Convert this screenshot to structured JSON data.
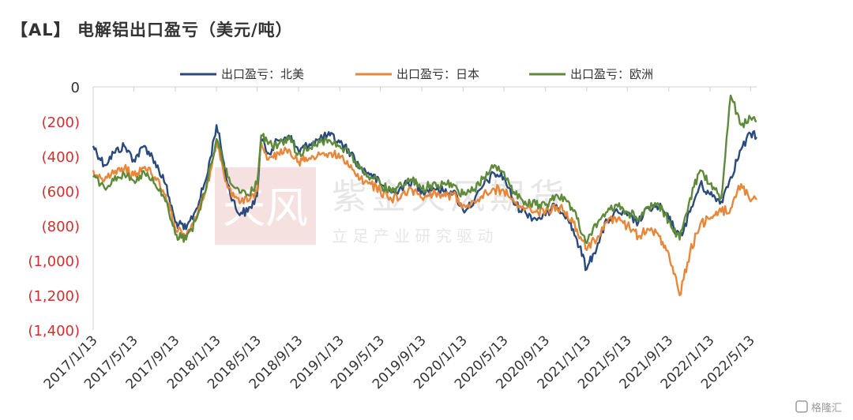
{
  "title": "【AL】 电解铝出口盈亏（美元/吨）",
  "watermark": {
    "logo": "天风",
    "main": "紫金天风期货",
    "sub": "立 足 产 业   研 究 驱 动"
  },
  "source_badge": "格隆汇",
  "chart_data": {
    "type": "line",
    "title": "【AL】 电解铝出口盈亏（美元/吨）",
    "xlabel": "",
    "ylabel": "",
    "ylim": [
      -1400,
      0
    ],
    "y_ticks": [
      0,
      -200,
      -400,
      -600,
      -800,
      -1000,
      -1200,
      -1400
    ],
    "y_tick_labels": [
      "0",
      "(200)",
      "(400)",
      "(600)",
      "(800)",
      "(1,000)",
      "(1,200)",
      "(1,400)"
    ],
    "x_tick_labels": [
      "2017/1/13",
      "2017/5/13",
      "2017/9/13",
      "2018/1/13",
      "2018/5/13",
      "2018/9/13",
      "2019/1/13",
      "2019/5/13",
      "2019/9/13",
      "2020/1/13",
      "2020/5/13",
      "2020/9/13",
      "2021/1/13",
      "2021/5/13",
      "2021/9/13",
      "2022/1/13",
      "2022/5/13"
    ],
    "x_range": [
      "2017/1/13",
      "2022/5/31"
    ],
    "grid": false,
    "legend_position": "top-center",
    "series": [
      {
        "name": "出口盈亏：北美",
        "color": "#2A4A7C",
        "points": [
          [
            "2017/1/13",
            -340
          ],
          [
            "2017/2/15",
            -450
          ],
          [
            "2017/3/15",
            -380
          ],
          [
            "2017/4/15",
            -340
          ],
          [
            "2017/5/13",
            -420
          ],
          [
            "2017/6/15",
            -340
          ],
          [
            "2017/7/15",
            -430
          ],
          [
            "2017/8/15",
            -560
          ],
          [
            "2017/9/13",
            -780
          ],
          [
            "2017/10/15",
            -820
          ],
          [
            "2017/11/15",
            -700
          ],
          [
            "2017/12/15",
            -520
          ],
          [
            "2018/1/13",
            -220
          ],
          [
            "2018/1/25",
            -330
          ],
          [
            "2018/2/15",
            -560
          ],
          [
            "2018/3/15",
            -720
          ],
          [
            "2018/4/15",
            -720
          ],
          [
            "2018/5/13",
            -630
          ],
          [
            "2018/5/25",
            -300
          ],
          [
            "2018/6/15",
            -380
          ],
          [
            "2018/7/15",
            -310
          ],
          [
            "2018/8/15",
            -280
          ],
          [
            "2018/9/13",
            -370
          ],
          [
            "2018/10/15",
            -330
          ],
          [
            "2018/11/15",
            -300
          ],
          [
            "2018/12/15",
            -280
          ],
          [
            "2019/1/13",
            -320
          ],
          [
            "2019/2/15",
            -380
          ],
          [
            "2019/3/15",
            -470
          ],
          [
            "2019/4/15",
            -500
          ],
          [
            "2019/5/13",
            -560
          ],
          [
            "2019/6/15",
            -610
          ],
          [
            "2019/7/15",
            -580
          ],
          [
            "2019/8/15",
            -540
          ],
          [
            "2019/9/13",
            -600
          ],
          [
            "2019/10/15",
            -580
          ],
          [
            "2019/11/15",
            -600
          ],
          [
            "2019/12/15",
            -600
          ],
          [
            "2020/1/13",
            -710
          ],
          [
            "2020/2/15",
            -660
          ],
          [
            "2020/3/15",
            -560
          ],
          [
            "2020/4/15",
            -500
          ],
          [
            "2020/5/13",
            -520
          ],
          [
            "2020/6/15",
            -680
          ],
          [
            "2020/7/15",
            -720
          ],
          [
            "2020/8/15",
            -760
          ],
          [
            "2020/9/13",
            -740
          ],
          [
            "2020/10/15",
            -680
          ],
          [
            "2020/11/15",
            -740
          ],
          [
            "2020/12/15",
            -880
          ],
          [
            "2021/1/13",
            -1050
          ],
          [
            "2021/2/15",
            -900
          ],
          [
            "2021/3/15",
            -770
          ],
          [
            "2021/4/15",
            -720
          ],
          [
            "2021/5/13",
            -740
          ],
          [
            "2021/6/15",
            -780
          ],
          [
            "2021/7/15",
            -700
          ],
          [
            "2021/8/15",
            -690
          ],
          [
            "2021/9/13",
            -760
          ],
          [
            "2021/10/15",
            -870
          ],
          [
            "2021/11/15",
            -720
          ],
          [
            "2021/12/15",
            -560
          ],
          [
            "2022/1/13",
            -620
          ],
          [
            "2022/2/15",
            -660
          ],
          [
            "2022/3/15",
            -520
          ],
          [
            "2022/4/15",
            -360
          ],
          [
            "2022/5/13",
            -270
          ],
          [
            "2022/5/31",
            -290
          ]
        ]
      },
      {
        "name": "出口盈亏：日本",
        "color": "#E8873A",
        "points": [
          [
            "2017/1/13",
            -480
          ],
          [
            "2017/2/15",
            -540
          ],
          [
            "2017/3/15",
            -500
          ],
          [
            "2017/4/15",
            -470
          ],
          [
            "2017/5/13",
            -510
          ],
          [
            "2017/6/15",
            -460
          ],
          [
            "2017/7/15",
            -520
          ],
          [
            "2017/8/15",
            -620
          ],
          [
            "2017/9/13",
            -820
          ],
          [
            "2017/10/15",
            -860
          ],
          [
            "2017/11/15",
            -750
          ],
          [
            "2017/12/15",
            -580
          ],
          [
            "2018/1/13",
            -320
          ],
          [
            "2018/1/25",
            -420
          ],
          [
            "2018/2/15",
            -580
          ],
          [
            "2018/3/15",
            -640
          ],
          [
            "2018/4/15",
            -660
          ],
          [
            "2018/5/13",
            -600
          ],
          [
            "2018/5/25",
            -320
          ],
          [
            "2018/6/15",
            -420
          ],
          [
            "2018/7/15",
            -380
          ],
          [
            "2018/8/15",
            -360
          ],
          [
            "2018/9/13",
            -430
          ],
          [
            "2018/10/15",
            -410
          ],
          [
            "2018/11/15",
            -390
          ],
          [
            "2018/12/15",
            -380
          ],
          [
            "2019/1/13",
            -410
          ],
          [
            "2019/2/15",
            -450
          ],
          [
            "2019/3/15",
            -530
          ],
          [
            "2019/4/15",
            -560
          ],
          [
            "2019/5/13",
            -600
          ],
          [
            "2019/6/15",
            -650
          ],
          [
            "2019/7/15",
            -620
          ],
          [
            "2019/8/15",
            -590
          ],
          [
            "2019/9/13",
            -640
          ],
          [
            "2019/10/15",
            -620
          ],
          [
            "2019/11/15",
            -630
          ],
          [
            "2019/12/15",
            -620
          ],
          [
            "2020/1/13",
            -680
          ],
          [
            "2020/2/15",
            -660
          ],
          [
            "2020/3/15",
            -610
          ],
          [
            "2020/4/15",
            -590
          ],
          [
            "2020/5/13",
            -600
          ],
          [
            "2020/6/15",
            -670
          ],
          [
            "2020/7/15",
            -700
          ],
          [
            "2020/8/15",
            -720
          ],
          [
            "2020/9/13",
            -720
          ],
          [
            "2020/10/15",
            -690
          ],
          [
            "2020/11/15",
            -720
          ],
          [
            "2020/12/15",
            -820
          ],
          [
            "2021/1/13",
            -940
          ],
          [
            "2021/2/15",
            -860
          ],
          [
            "2021/3/15",
            -780
          ],
          [
            "2021/4/15",
            -760
          ],
          [
            "2021/5/13",
            -800
          ],
          [
            "2021/6/15",
            -860
          ],
          [
            "2021/7/15",
            -820
          ],
          [
            "2021/8/15",
            -860
          ],
          [
            "2021/9/13",
            -960
          ],
          [
            "2021/10/15",
            -1200
          ],
          [
            "2021/11/15",
            -950
          ],
          [
            "2021/12/15",
            -790
          ],
          [
            "2022/1/13",
            -760
          ],
          [
            "2022/2/15",
            -720
          ],
          [
            "2022/3/15",
            -700
          ],
          [
            "2022/4/15",
            -560
          ],
          [
            "2022/5/13",
            -660
          ],
          [
            "2022/5/31",
            -650
          ]
        ]
      },
      {
        "name": "出口盈亏：欧洲",
        "color": "#5E8A3A",
        "points": [
          [
            "2017/1/13",
            -520
          ],
          [
            "2017/2/15",
            -580
          ],
          [
            "2017/3/15",
            -540
          ],
          [
            "2017/4/15",
            -500
          ],
          [
            "2017/5/13",
            -540
          ],
          [
            "2017/6/15",
            -500
          ],
          [
            "2017/7/15",
            -560
          ],
          [
            "2017/8/15",
            -660
          ],
          [
            "2017/9/13",
            -850
          ],
          [
            "2017/10/15",
            -880
          ],
          [
            "2017/11/15",
            -760
          ],
          [
            "2017/12/15",
            -560
          ],
          [
            "2018/1/13",
            -300
          ],
          [
            "2018/1/25",
            -360
          ],
          [
            "2018/2/15",
            -520
          ],
          [
            "2018/3/15",
            -580
          ],
          [
            "2018/4/15",
            -620
          ],
          [
            "2018/5/13",
            -560
          ],
          [
            "2018/5/25",
            -280
          ],
          [
            "2018/6/15",
            -330
          ],
          [
            "2018/7/15",
            -330
          ],
          [
            "2018/8/15",
            -300
          ],
          [
            "2018/9/13",
            -380
          ],
          [
            "2018/10/15",
            -350
          ],
          [
            "2018/11/15",
            -320
          ],
          [
            "2018/12/15",
            -310
          ],
          [
            "2019/1/13",
            -340
          ],
          [
            "2019/2/15",
            -390
          ],
          [
            "2019/3/15",
            -470
          ],
          [
            "2019/4/15",
            -520
          ],
          [
            "2019/5/13",
            -560
          ],
          [
            "2019/6/15",
            -610
          ],
          [
            "2019/7/15",
            -570
          ],
          [
            "2019/8/15",
            -540
          ],
          [
            "2019/9/13",
            -590
          ],
          [
            "2019/10/15",
            -560
          ],
          [
            "2019/11/15",
            -560
          ],
          [
            "2019/12/15",
            -560
          ],
          [
            "2020/1/13",
            -620
          ],
          [
            "2020/2/15",
            -590
          ],
          [
            "2020/3/15",
            -520
          ],
          [
            "2020/4/15",
            -450
          ],
          [
            "2020/5/13",
            -490
          ],
          [
            "2020/6/15",
            -620
          ],
          [
            "2020/7/15",
            -660
          ],
          [
            "2020/8/15",
            -680
          ],
          [
            "2020/9/13",
            -680
          ],
          [
            "2020/10/15",
            -620
          ],
          [
            "2020/11/15",
            -660
          ],
          [
            "2020/12/15",
            -760
          ],
          [
            "2021/1/13",
            -900
          ],
          [
            "2021/2/15",
            -780
          ],
          [
            "2021/3/15",
            -720
          ],
          [
            "2021/4/15",
            -690
          ],
          [
            "2021/5/13",
            -720
          ],
          [
            "2021/6/15",
            -760
          ],
          [
            "2021/7/15",
            -690
          ],
          [
            "2021/8/15",
            -680
          ],
          [
            "2021/9/13",
            -770
          ],
          [
            "2021/10/15",
            -880
          ],
          [
            "2021/11/15",
            -640
          ],
          [
            "2021/12/15",
            -480
          ],
          [
            "2022/1/13",
            -560
          ],
          [
            "2022/2/15",
            -640
          ],
          [
            "2022/3/15",
            -50
          ],
          [
            "2022/4/15",
            -220
          ],
          [
            "2022/5/13",
            -180
          ],
          [
            "2022/5/31",
            -200
          ]
        ]
      }
    ]
  }
}
